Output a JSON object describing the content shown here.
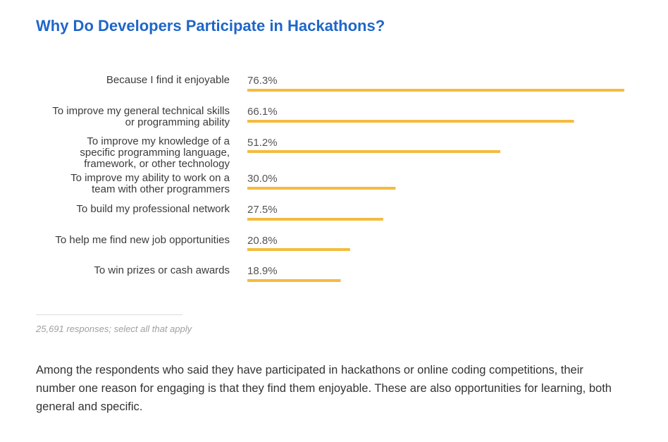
{
  "title": "Why Do Developers Participate in Hackathons?",
  "note": "25,691 responses; select all that apply",
  "body_text": "Among the respondents who said they have participated in hackathons or online coding competitions, their number one reason for engaging is that they find them enjoyable. These are also opportunities for learning, both general and specific.",
  "colors": {
    "bar": "#f4bb3f",
    "title": "#1f66c9"
  },
  "chart_data": {
    "type": "bar",
    "orientation": "horizontal",
    "title": "Why Do Developers Participate in Hackathons?",
    "categories": [
      [
        "Because I find it enjoyable"
      ],
      [
        "To improve my general technical skills",
        "or programming ability"
      ],
      [
        "To improve my knowledge of a",
        "specific programming language,",
        "framework, or other technology"
      ],
      [
        "To improve my ability to work on a",
        "team with other programmers"
      ],
      [
        "To build my professional network"
      ],
      [
        "To help me find new job opportunities"
      ],
      [
        "To win prizes or cash awards"
      ]
    ],
    "values": [
      76.3,
      66.1,
      51.2,
      30.0,
      27.5,
      20.8,
      18.9
    ],
    "value_labels": [
      "76.3%",
      "66.1%",
      "51.2%",
      "30.0%",
      "27.5%",
      "20.8%",
      "18.9%"
    ],
    "xlim": [
      0,
      76.3
    ],
    "grid": false,
    "legend": "none"
  }
}
